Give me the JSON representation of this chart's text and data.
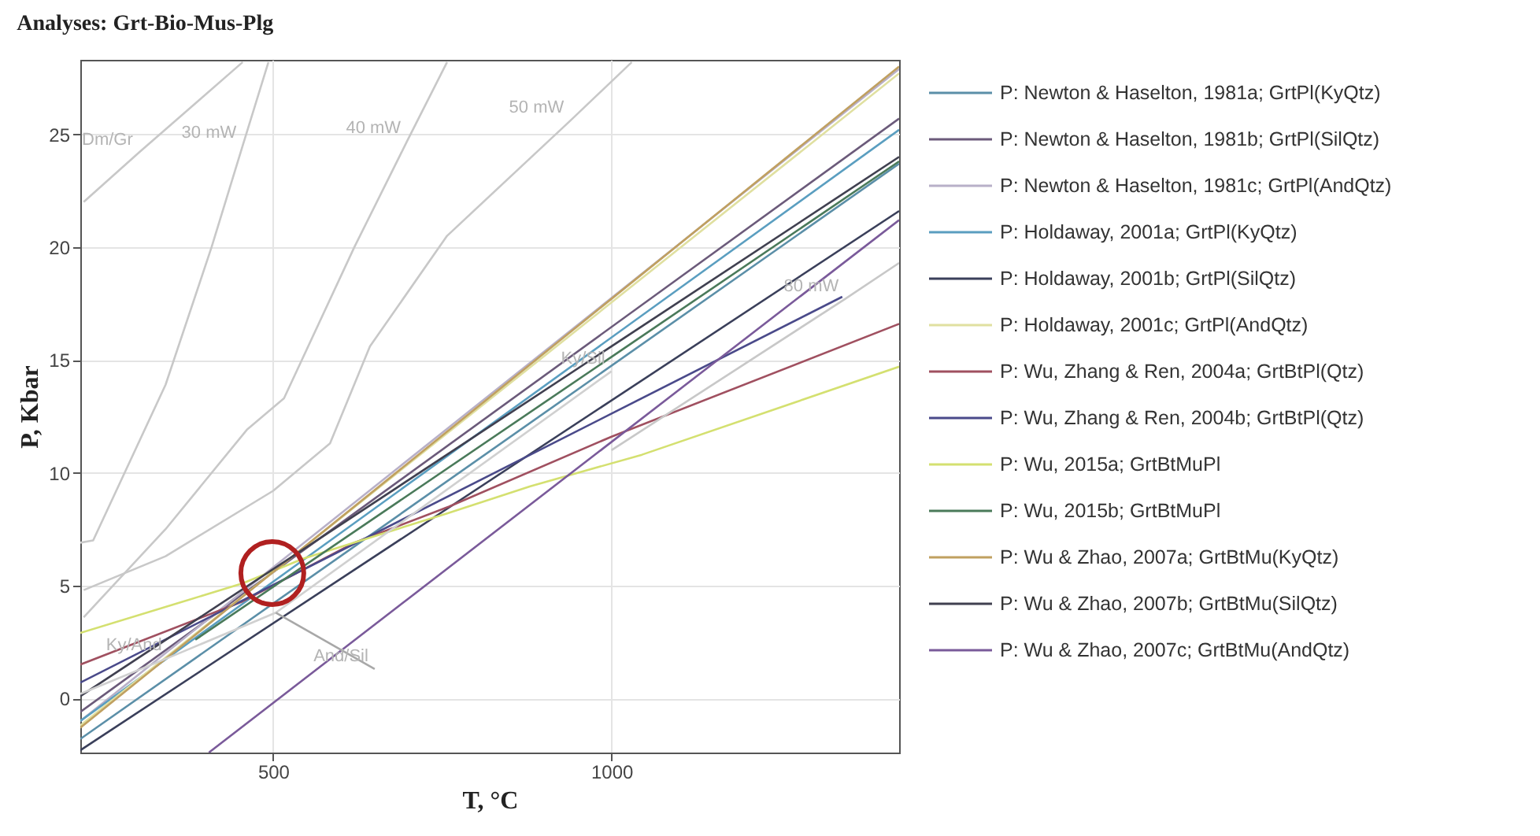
{
  "chart_data": {
    "type": "line",
    "title": "Analyses: Grt-Bio-Mus-Plg",
    "xlabel": "T, °C",
    "ylabel": "P, Kbar",
    "xlim": [
      215,
      1425
    ],
    "ylim": [
      -2.4,
      28.3
    ],
    "xticks": [
      500,
      {
        "value": 1000,
        "label": "1000"
      }
    ],
    "yticks": [
      0,
      5,
      10,
      15,
      20,
      25
    ],
    "grid": true,
    "legend": "right",
    "series": [
      {
        "name": "P: Newton & Haselton, 1981a; GrtPl(KyQtz)",
        "color": "#5b8fa8",
        "x": [
          215,
          1425
        ],
        "values": [
          -1.8,
          23.7
        ]
      },
      {
        "name": "P: Newton & Haselton, 1981b; GrtPl(SilQtz)",
        "color": "#6b5a7a",
        "x": [
          215,
          1425
        ],
        "values": [
          -0.6,
          25.7
        ]
      },
      {
        "name": "P: Newton & Haselton, 1981c; GrtPl(AndQtz)",
        "color": "#b8b0c8",
        "x": [
          215,
          1425
        ],
        "values": [
          -1.0,
          27.9
        ]
      },
      {
        "name": "P: Holdaway, 2001a; GrtPl(KyQtz)",
        "color": "#5a9ec0",
        "x": [
          215,
          1425
        ],
        "values": [
          -1.0,
          25.2
        ]
      },
      {
        "name": "P: Holdaway, 2001b; GrtPl(SilQtz)",
        "color": "#3a3f5a",
        "x": [
          215,
          1425
        ],
        "values": [
          -2.3,
          21.6
        ]
      },
      {
        "name": "P: Holdaway, 2001c; GrtPl(AndQtz)",
        "color": "#e0e0a0",
        "x": [
          215,
          1425
        ],
        "values": [
          -1.2,
          27.7
        ]
      },
      {
        "name": "P: Wu, Zhang & Ren, 2004a; GrtBtPl(Qtz)",
        "color": "#a05060",
        "x": [
          215,
          455,
          620,
          760,
          1000,
          1425
        ],
        "values": [
          1.5,
          4.3,
          6.9,
          8.5,
          11.6,
          16.6
        ]
      },
      {
        "name": "P: Wu, Zhang & Ren, 2004b; GrtBtPl(Qtz)",
        "color": "#4a4a8a",
        "x": [
          215,
          1341
        ],
        "values": [
          0.7,
          17.8
        ]
      },
      {
        "name": "P: Wu, 2015a; GrtBtMuPl",
        "color": "#d4e070",
        "x": [
          215,
          455,
          545,
          757,
          880,
          1045,
          1425
        ],
        "values": [
          2.9,
          5.1,
          6.2,
          8.2,
          9.4,
          10.8,
          14.7
        ]
      },
      {
        "name": "P: Wu, 2015b; GrtBtMuPl",
        "color": "#4a7a5a",
        "x": [
          385,
          1425
        ],
        "values": [
          2.6,
          23.8
        ]
      },
      {
        "name": "P: Wu & Zhao, 2007a; GrtBtMu(KyQtz)",
        "color": "#c0a060",
        "x": [
          215,
          1425
        ],
        "values": [
          -1.3,
          28.0
        ]
      },
      {
        "name": "P: Wu & Zhao, 2007b; GrtBtMu(SilQtz)",
        "color": "#404050",
        "x": [
          215,
          1425
        ],
        "values": [
          0.1,
          24.0
        ]
      },
      {
        "name": "P: Wu & Zhao, 2007c; GrtBtMu(AndQtz)",
        "color": "#7a5a9a",
        "x": [
          405,
          1425
        ],
        "values": [
          -2.4,
          21.2
        ]
      },
      {
        "color": "#c8c8c8",
        "x": [
          220,
          302,
          455
        ],
        "values": [
          22.0,
          24.2,
          28.2
        ]
      },
      {
        "color": "#c8c8c8",
        "x": [
          215,
          234,
          341,
          409,
          455,
          493
        ],
        "values": [
          6.9,
          7.0,
          13.9,
          20.0,
          24.5,
          28.2
        ]
      },
      {
        "color": "#c8c8c8",
        "x": [
          220,
          341,
          461,
          516,
          620,
          698,
          757
        ],
        "values": [
          3.6,
          7.5,
          11.9,
          13.3,
          20.0,
          24.7,
          28.2
        ]
      },
      {
        "color": "#c8c8c8",
        "x": [
          220,
          341,
          500,
          584,
          643,
          757,
          939,
          1030
        ],
        "values": [
          4.8,
          6.3,
          9.2,
          11.3,
          15.6,
          20.5,
          25.6,
          28.2
        ]
      },
      {
        "color": "#c8c8c8",
        "x": [
          1000,
          1345,
          1425
        ],
        "values": [
          11.0,
          17.7,
          19.3
        ]
      },
      {
        "color": "#d0d0d0",
        "x": [
          215,
          345,
          504,
          1000
        ],
        "values": [
          0.2,
          1.8,
          3.8,
          14.5
        ]
      },
      {
        "color": "#a8a8a8",
        "x": [
          504,
          650
        ],
        "values": [
          3.8,
          1.3
        ]
      }
    ],
    "annotations": [
      {
        "text": "Dm/Gr",
        "x": 302,
        "y": 24.2
      },
      {
        "text": "30 mW",
        "x": 455,
        "y": 24.5
      },
      {
        "text": "40 mW",
        "x": 698,
        "y": 24.7
      },
      {
        "text": "50 mW",
        "x": 939,
        "y": 25.6
      },
      {
        "text": "80 mW",
        "x": 1345,
        "y": 17.7
      },
      {
        "text": "Ky/And",
        "x": 345,
        "y": 1.8
      },
      {
        "text": "And/Sil",
        "x": 650,
        "y": 1.3
      },
      {
        "text": "Ky/Sil",
        "x": 1000,
        "y": 14.5
      }
    ]
  }
}
